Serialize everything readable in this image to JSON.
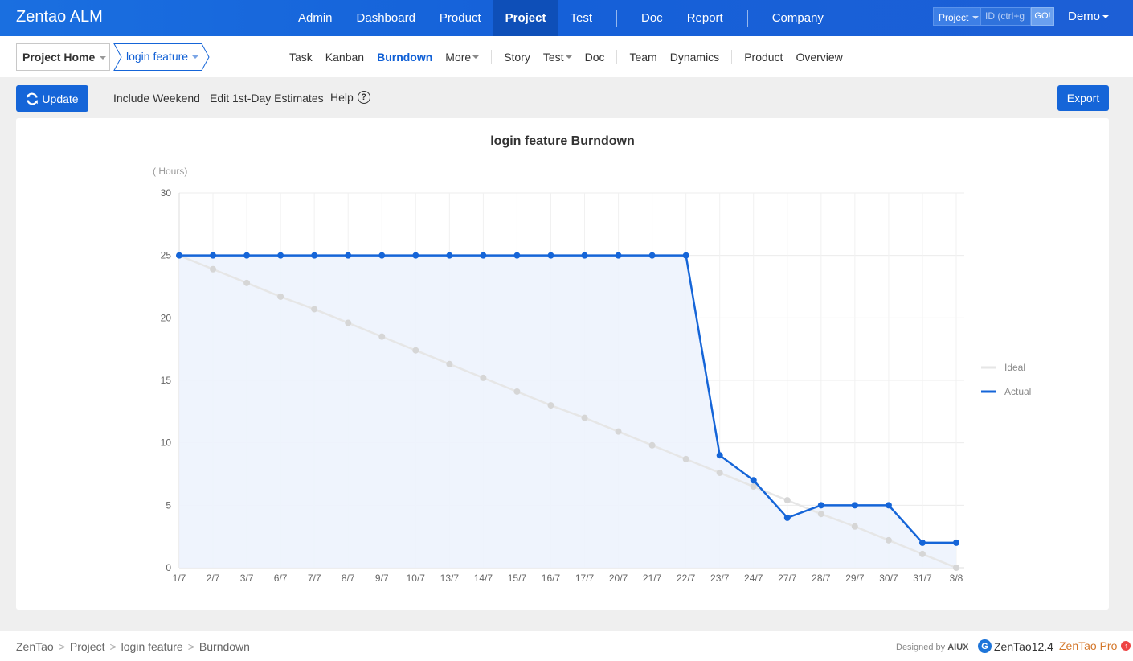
{
  "topbar": {
    "brand": "Zentao ALM",
    "nav": [
      "Admin",
      "Dashboard",
      "Product",
      "Project",
      "Test",
      "Doc",
      "Report",
      "Company"
    ],
    "active": "Project",
    "search_type": "Project",
    "search_placeholder": "ID (ctrl+g",
    "go_label": "GO!",
    "user": "Demo"
  },
  "subbar": {
    "project_home": "Project Home",
    "current_project": "login feature",
    "nav": [
      "Task",
      "Kanban",
      "Burndown",
      "More",
      "Story",
      "Test",
      "Doc",
      "Team",
      "Dynamics",
      "Product",
      "Overview"
    ],
    "active": "Burndown"
  },
  "toolbar": {
    "update_label": "Update",
    "include_weekend": "Include Weekend",
    "edit_estimates": "Edit 1st-Day Estimates",
    "help": "Help",
    "export_label": "Export"
  },
  "chart_data": {
    "type": "line",
    "title": "login feature Burndown",
    "ylabel": "( Hours)",
    "ylim": [
      0,
      30
    ],
    "yticks": [
      0,
      5,
      10,
      15,
      20,
      25,
      30
    ],
    "x": [
      "1/7",
      "2/7",
      "3/7",
      "6/7",
      "7/7",
      "8/7",
      "9/7",
      "10/7",
      "13/7",
      "14/7",
      "15/7",
      "16/7",
      "17/7",
      "20/7",
      "21/7",
      "22/7",
      "23/7",
      "24/7",
      "27/7",
      "28/7",
      "29/7",
      "30/7",
      "31/7",
      "3/8"
    ],
    "series": [
      {
        "name": "Ideal",
        "color": "#e6e6e6",
        "values": [
          25,
          23.9,
          22.8,
          21.7,
          20.7,
          19.6,
          18.5,
          17.4,
          16.3,
          15.2,
          14.1,
          13.0,
          12.0,
          10.9,
          9.8,
          8.7,
          7.6,
          6.5,
          5.4,
          4.3,
          3.3,
          2.2,
          1.1,
          0
        ]
      },
      {
        "name": "Actual",
        "color": "#1565d8",
        "values": [
          25,
          25,
          25,
          25,
          25,
          25,
          25,
          25,
          25,
          25,
          25,
          25,
          25,
          25,
          25,
          25,
          9,
          7,
          4,
          5,
          5,
          5,
          2,
          2
        ]
      }
    ],
    "legend_position": "right",
    "grid": true
  },
  "footer": {
    "crumbs": [
      "ZenTao",
      "Project",
      "login feature",
      "Burndown"
    ],
    "designed_by": "Designed by",
    "designed_brand": "AIUX",
    "version": "ZenTao12.4",
    "pro": "ZenTao Pro"
  },
  "colors": {
    "primary": "#1565d8",
    "topbar": "#1a6fe0",
    "ideal": "#e6e6e6",
    "fill": "#edf3fd"
  },
  "icons": [
    "refresh-icon",
    "help-icon",
    "zentao-logo-icon",
    "upgrade-icon"
  ]
}
